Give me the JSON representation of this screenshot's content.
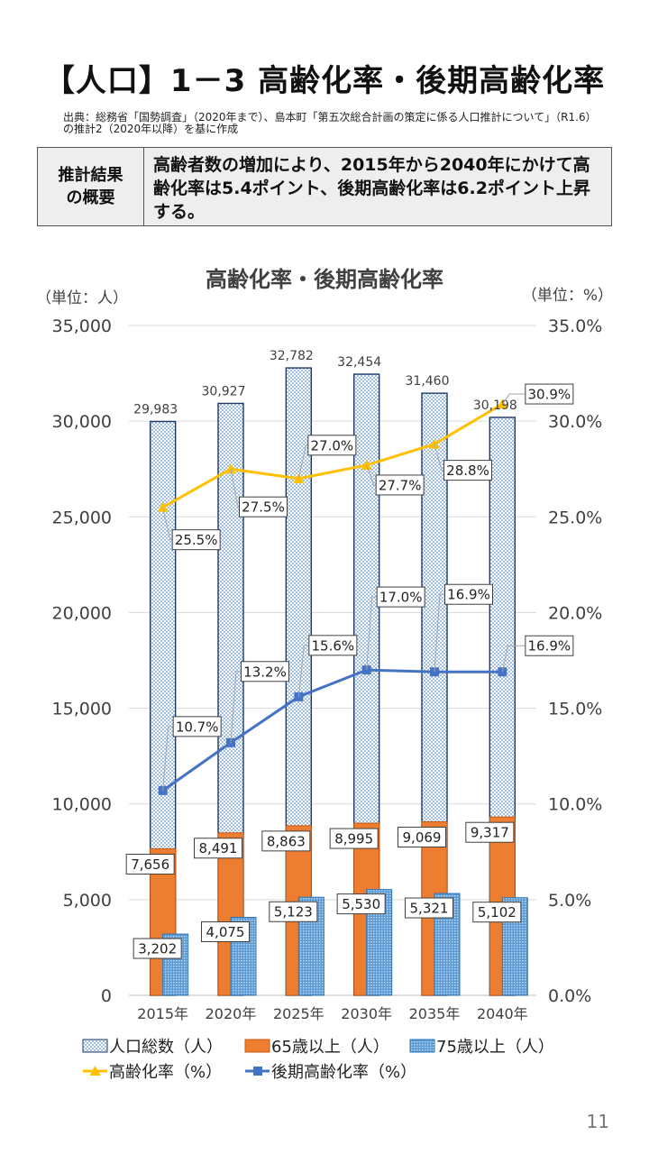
{
  "header": {
    "title": "【人口】1－3 高齢化率・後期高齢化率",
    "source": "出典：総務省「国勢調査」（2020年まで）、島本町「第五次総合計画の策定に係る人口推計について」（R1.6）の推計2（2020年以降）を基に作成"
  },
  "summary": {
    "heading": "推計結果\nの概要",
    "text": "高齢者数の増加により、2015年から2040年にかけて高齢化率は5.4ポイント、後期高齢化率は6.2ポイント上昇する。"
  },
  "page_number": "11",
  "chart_data": {
    "type": "bar+line",
    "title": "高齢化率・後期高齢化率",
    "y_left_unit": "（単位：人）",
    "y_right_unit": "（単位：%）",
    "categories": [
      "2015年",
      "2020年",
      "2025年",
      "2030年",
      "2035年",
      "2040年"
    ],
    "y_left_range": [
      0,
      35000
    ],
    "y_left_ticks": [
      "0",
      "5,000",
      "10,000",
      "15,000",
      "20,000",
      "25,000",
      "30,000",
      "35,000"
    ],
    "y_right_range": [
      0,
      35
    ],
    "y_right_ticks": [
      "0.0%",
      "5.0%",
      "10.0%",
      "15.0%",
      "20.0%",
      "25.0%",
      "30.0%",
      "35.0%"
    ],
    "bar_series": [
      {
        "name": "人口総数（人）",
        "values": [
          29983,
          30927,
          32782,
          32454,
          31460,
          30198
        ],
        "labels": [
          "29,983",
          "30,927",
          "32,782",
          "32,454",
          "31,460",
          "30,198"
        ],
        "color": "#c9dbed"
      },
      {
        "name": "65歳以上（人）",
        "values": [
          7656,
          8491,
          8863,
          8995,
          9069,
          9317
        ],
        "labels": [
          "7,656",
          "8,491",
          "8,863",
          "8,995",
          "9,069",
          "9,317"
        ],
        "color": "#ed7d31"
      },
      {
        "name": "75歳以上（人）",
        "values": [
          3202,
          4075,
          5123,
          5530,
          5321,
          5102
        ],
        "labels": [
          "3,202",
          "4,075",
          "5,123",
          "5,530",
          "5,321",
          "5,102"
        ],
        "color": "#8db8e0"
      }
    ],
    "line_series": [
      {
        "name": "高齢化率（%）",
        "values": [
          25.5,
          27.5,
          27.0,
          27.7,
          28.8,
          30.9
        ],
        "labels": [
          "25.5%",
          "27.5%",
          "27.0%",
          "27.7%",
          "28.8%",
          "30.9%"
        ],
        "color": "#ffc000",
        "marker": "triangle"
      },
      {
        "name": "後期高齢化率（%）",
        "values": [
          10.7,
          13.2,
          15.6,
          17.0,
          16.9,
          16.9
        ],
        "labels": [
          "10.7%",
          "13.2%",
          "15.6%",
          "17.0%",
          "16.9%",
          "16.9%"
        ],
        "color": "#4472c4",
        "marker": "square"
      }
    ]
  }
}
